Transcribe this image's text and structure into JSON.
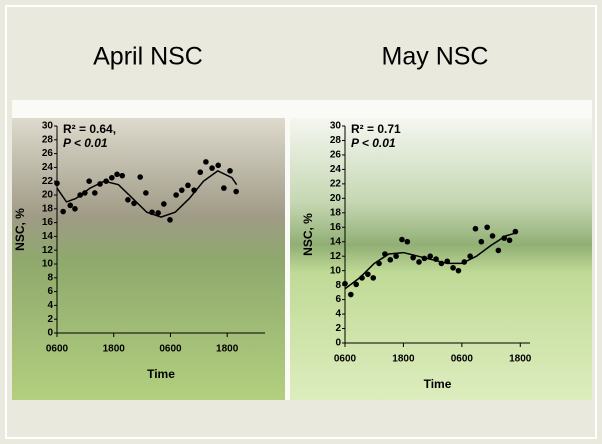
{
  "chart_data": [
    {
      "type": "scatter",
      "title": "April NSC",
      "xlabel": "Time",
      "ylabel": "NSC, %",
      "color": "#000000",
      "annotations": [
        "R² = 0.64,",
        "P < 0.01"
      ],
      "x": [
        0,
        1.3,
        2.8,
        3.8,
        4.9,
        5.9,
        6.8,
        8.0,
        9.1,
        10.4,
        11.6,
        12.7,
        13.8,
        15.0,
        16.3,
        17.6,
        18.8,
        20.1,
        21.4,
        22.6,
        23.9,
        25.2,
        26.4,
        27.7,
        29.0,
        30.3,
        31.5,
        32.8,
        34.1,
        35.3,
        36.6,
        37.9
      ],
      "values": [
        21.7,
        17.6,
        18.5,
        18,
        20,
        20.3,
        22,
        20.3,
        21.6,
        22,
        22.5,
        23,
        22.8,
        19.3,
        18.8,
        22.6,
        20.3,
        17.5,
        17.4,
        18.7,
        16.4,
        20,
        20.7,
        21.4,
        20.7,
        23.3,
        24.8,
        23.9,
        24.3,
        21,
        23.5,
        20.5
      ],
      "fit": {
        "x": [
          0,
          2,
          4,
          7,
          10,
          13,
          16,
          19,
          22,
          25,
          28,
          31,
          34,
          37,
          38
        ],
        "values": [
          21,
          19,
          19.5,
          21,
          22,
          21.5,
          19.5,
          17.5,
          16.8,
          17.5,
          19.5,
          22,
          23.5,
          22.5,
          21.5
        ]
      },
      "xlim": [
        0,
        44
      ],
      "xticks": [
        {
          "value": 0,
          "label": "0600"
        },
        {
          "value": 12,
          "label": "1800"
        },
        {
          "value": 24,
          "label": "0600"
        },
        {
          "value": 36,
          "label": "1800"
        }
      ],
      "ylim": [
        0,
        30
      ],
      "yticks": [
        0,
        2,
        4,
        6,
        8,
        10,
        12,
        14,
        16,
        18,
        20,
        22,
        24,
        26,
        28,
        30
      ]
    },
    {
      "type": "scatter",
      "title": "May NSC",
      "xlabel": "Time",
      "ylabel": "NSC, %",
      "color": "#000000",
      "annotations": [
        "R² = 0.71",
        "P < 0.01"
      ],
      "x": [
        0,
        1.2,
        2.3,
        3.5,
        4.7,
        5.8,
        7,
        8.2,
        9.3,
        10.5,
        11.7,
        12.8,
        14,
        15.2,
        16.3,
        17.5,
        18.7,
        19.8,
        21,
        22.2,
        23.3,
        24.5,
        25.7,
        26.8,
        28,
        29.2,
        30.3,
        31.5,
        32.7,
        33.8,
        35
      ],
      "values": [
        8.2,
        6.7,
        8.1,
        9.0,
        9.5,
        9.0,
        11.0,
        12.3,
        11.5,
        12.0,
        14.3,
        14.0,
        11.8,
        11.2,
        11.7,
        12.0,
        11.6,
        11.0,
        11.3,
        10.4,
        10.0,
        11.2,
        12.0,
        15.8,
        14.0,
        16.0,
        14.8,
        12.8,
        14.5,
        14.2,
        15.4
      ],
      "fit": {
        "x": [
          0,
          3,
          6,
          9,
          12,
          15,
          18,
          21,
          24,
          27,
          30,
          33,
          35
        ],
        "values": [
          7.5,
          9,
          11,
          12.3,
          12.5,
          12,
          11.5,
          11,
          11,
          12,
          13.5,
          14.8,
          15.2
        ]
      },
      "xlim": [
        0,
        38
      ],
      "xticks": [
        {
          "value": 0,
          "label": "0600"
        },
        {
          "value": 12,
          "label": "1800"
        },
        {
          "value": 24,
          "label": "0600"
        },
        {
          "value": 36,
          "label": "1800"
        }
      ],
      "ylim": [
        0,
        30
      ],
      "yticks": [
        0,
        2,
        4,
        6,
        8,
        10,
        12,
        14,
        16,
        18,
        20,
        22,
        24,
        26,
        28,
        30
      ]
    }
  ]
}
